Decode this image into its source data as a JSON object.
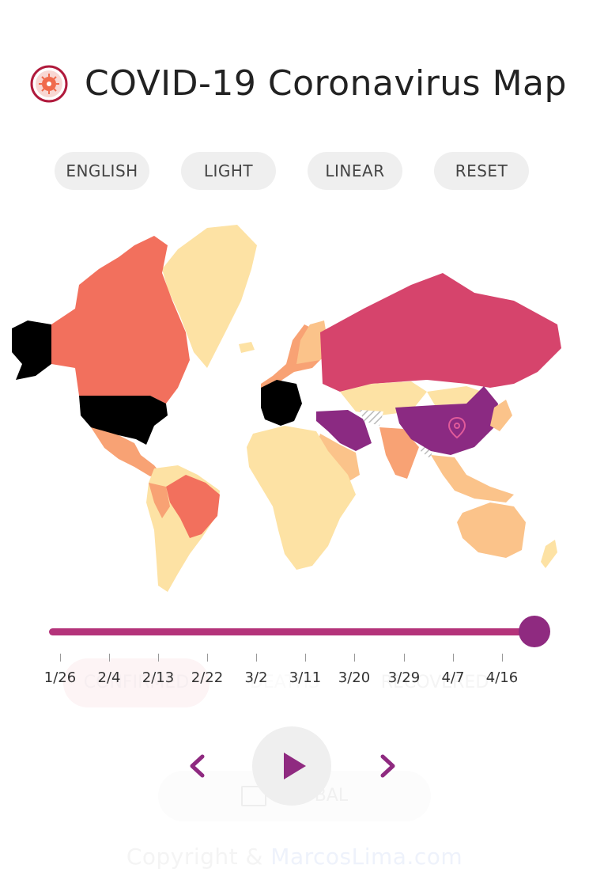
{
  "header": {
    "title": "COVID-19 Coronavirus Map",
    "logo_icon": "virus-icon"
  },
  "toolbar": {
    "language_label": "ENGLISH",
    "theme_label": "LIGHT",
    "scale_label": "LINEAR",
    "reset_label": "RESET"
  },
  "timeline": {
    "ticks": [
      "1/26",
      "2/4",
      "2/13",
      "2/22",
      "3/2",
      "3/11",
      "3/20",
      "3/29",
      "4/7",
      "4/16"
    ],
    "progress": 1.0,
    "accent": "#b4337a",
    "thumb_color": "#8f2a80"
  },
  "tabs": {
    "confirmed": "CONFIRMED",
    "deaths": "DEATHS",
    "recovered": "RECOVERED"
  },
  "region": {
    "label": "GLOBAL",
    "icon": "map-icon"
  },
  "controls": {
    "prev_icon": "chevron-left-icon",
    "play_icon": "play-icon",
    "next_icon": "chevron-right-icon"
  },
  "footer": {
    "prefix": "Copyright & ",
    "link": "MarcosLima.com"
  },
  "palette": {
    "low": "#fde2a4",
    "mid": "#f8a274",
    "high": "#f2705d",
    "higher": "#d6446c",
    "severe": "#8b2a82",
    "max": "#000000"
  }
}
